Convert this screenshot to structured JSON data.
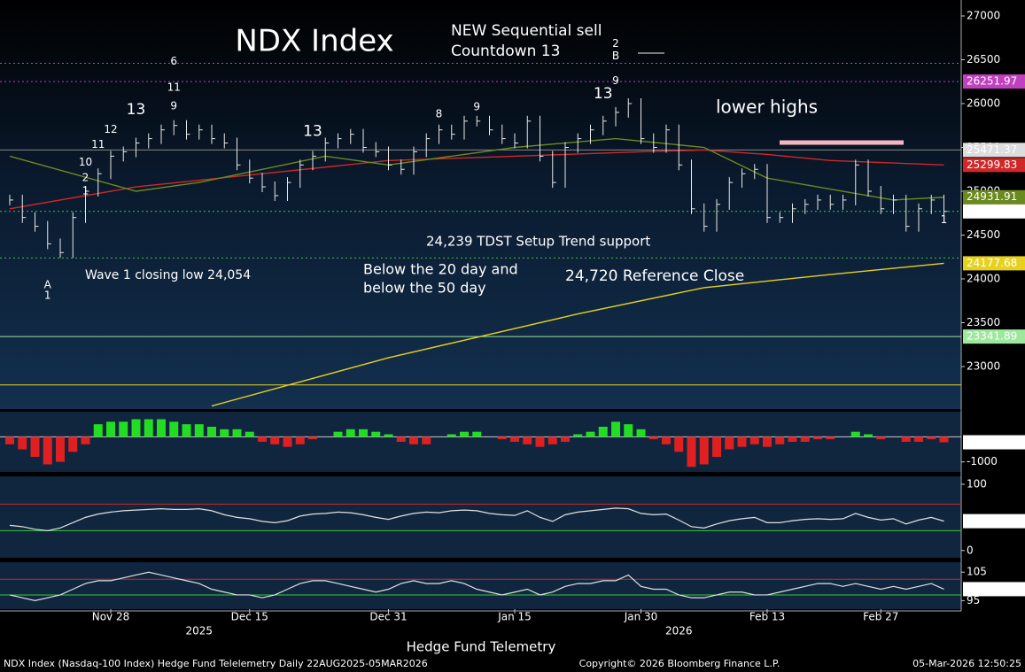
{
  "chart_data": [
    {
      "type": "price",
      "title": "NDX Index",
      "annotations": [
        "NEW Sequential sell",
        "Countdown 13",
        "lower highs",
        "24,239 TDST Setup Trend support",
        "Wave 1 closing low 24,054",
        "Below the 20 day and",
        "below the 50 day",
        "24,720 Reference Close"
      ],
      "categories": [
        null,
        null,
        null,
        null,
        null,
        null,
        null,
        null,
        "Nov 28",
        null,
        null,
        null,
        null,
        null,
        null,
        null,
        null,
        null,
        null,
        "Dec 15",
        null,
        null,
        null,
        null,
        null,
        null,
        null,
        null,
        null,
        null,
        "Dec 31",
        null,
        null,
        null,
        null,
        null,
        null,
        null,
        null,
        null,
        "Jan 15",
        null,
        null,
        null,
        null,
        null,
        null,
        null,
        null,
        null,
        "Jan 30",
        null,
        null,
        null,
        null,
        null,
        null,
        null,
        null,
        null,
        "Feb 13",
        null,
        null,
        null,
        null,
        null,
        null,
        null,
        null,
        "Feb 27",
        null,
        null,
        null,
        null,
        null
      ],
      "year_labels": [
        {
          "text": "2025",
          "at": 15
        },
        {
          "text": "2026",
          "at": 53
        }
      ],
      "x_label": "Hedge Fund Telemetry",
      "values": [
        24900,
        24700,
        24600,
        24400,
        24300,
        24700,
        25000,
        25200,
        25400,
        25450,
        25550,
        25600,
        25700,
        25750,
        25650,
        25700,
        25600,
        25550,
        25300,
        25150,
        25050,
        24950,
        25100,
        25300,
        25400,
        25550,
        25600,
        25650,
        25500,
        25450,
        25300,
        25250,
        25450,
        25600,
        25700,
        25650,
        25800,
        25800,
        25700,
        25600,
        25550,
        25800,
        25400,
        25100,
        25500,
        25600,
        25700,
        25800,
        25900,
        26000,
        25600,
        25500,
        25700,
        25300,
        24800,
        24600,
        24850,
        25100,
        25200,
        25250,
        24700,
        24700,
        24800,
        24850,
        24900,
        24850,
        24900,
        25300,
        25000,
        24800,
        24900,
        24600,
        24800,
        24900,
        24770.08
      ],
      "color": "#e8e8e8",
      "series": [
        {
          "color": "#e6d21e",
          "x": [
            16,
            30,
            45,
            55,
            65,
            74
          ],
          "values": [
            22550,
            23100,
            23600,
            23900,
            24050,
            24177.68
          ]
        },
        {
          "color": "#d02828",
          "x": [
            0,
            10,
            20,
            30,
            40,
            50,
            55,
            60,
            65,
            74
          ],
          "values": [
            24800,
            25050,
            25200,
            25350,
            25400,
            25450,
            25470,
            25420,
            25350,
            25299.83
          ]
        },
        {
          "color": "#6b8a1e",
          "x": [
            0,
            5,
            10,
            15,
            20,
            25,
            30,
            40,
            48,
            55,
            60,
            66,
            70,
            74
          ],
          "values": [
            25400,
            25200,
            25000,
            25100,
            25250,
            25400,
            25300,
            25500,
            25600,
            25500,
            25150,
            25000,
            24900,
            24931.91
          ]
        }
      ],
      "levels": [
        {
          "value": 26460,
          "color": "#c040c0",
          "dash": true,
          "label": false
        },
        {
          "value": 26251.97,
          "color": "#c040c0",
          "dash": true,
          "label": true
        },
        {
          "value": 25471.37,
          "color": "#888888",
          "dash": false,
          "label": true
        },
        {
          "value": 24770,
          "color": "#3cc83c",
          "dash": true,
          "label": false
        },
        {
          "value": 24239,
          "color": "#3cc83c",
          "dash": true,
          "label": false
        },
        {
          "value": 23341.89,
          "color": "#9de89d",
          "dash": false,
          "label": true
        },
        {
          "value": 22790,
          "color": "#e6d21e",
          "dash": false,
          "label": false
        }
      ],
      "sequential_labels": [
        {
          "text": "A",
          "at": 3,
          "level": 23930,
          "color": "#3dd"
        },
        {
          "text": "1",
          "at": 3,
          "level": 23810,
          "color": "#ff3"
        },
        {
          "text": "1",
          "at": 6,
          "level": 25000,
          "color": "#3f3"
        },
        {
          "text": "2",
          "at": 6,
          "level": 25150,
          "color": "#3f3"
        },
        {
          "text": "10",
          "at": 6,
          "level": 25330,
          "color": "#f33"
        },
        {
          "text": "11",
          "at": 7,
          "level": 25530,
          "color": "#f33"
        },
        {
          "text": "12",
          "at": 8,
          "level": 25700,
          "color": "#f33"
        },
        {
          "text": "13",
          "at": 10,
          "level": 25930,
          "color": "#f33"
        },
        {
          "text": "9",
          "at": 13,
          "level": 25970,
          "color": "#3f3"
        },
        {
          "text": "11",
          "at": 13,
          "level": 26180,
          "color": "#f33"
        },
        {
          "text": "6",
          "at": 13,
          "level": 26480,
          "color": "#d3d"
        },
        {
          "text": "13",
          "at": 24,
          "level": 25680,
          "color": "#f33"
        },
        {
          "text": "8",
          "at": 34,
          "level": 25880,
          "color": "#f33"
        },
        {
          "text": "9",
          "at": 37,
          "level": 25960,
          "color": "#f33"
        },
        {
          "text": "13",
          "at": 47,
          "level": 26110,
          "color": "#f33"
        },
        {
          "text": "9",
          "at": 48,
          "level": 26260,
          "color": "#d3d"
        },
        {
          "text": "B",
          "at": 48,
          "level": 26540,
          "color": "#3dd"
        },
        {
          "text": "2",
          "at": 48,
          "level": 26680,
          "color": "#ff3"
        },
        {
          "text": "1",
          "at": 74,
          "level": 24670,
          "color": "#3f3"
        }
      ],
      "ylim": [
        22515,
        27182
      ],
      "yticks": [
        23000,
        23500,
        24000,
        24500,
        25000,
        25500,
        26000,
        26500,
        27000
      ]
    },
    {
      "type": "histogram",
      "ylim": [
        -1400,
        1000
      ],
      "yticks": [
        -1000
      ],
      "up_color": "#22dd22",
      "down_color": "#e02020",
      "values": [
        -300,
        -500,
        -800,
        -1100,
        -1000,
        -600,
        -300,
        500,
        600,
        600,
        700,
        700,
        700,
        600,
        500,
        500,
        400,
        300,
        300,
        200,
        -200,
        -300,
        -400,
        -300,
        -100,
        0,
        200,
        300,
        300,
        200,
        100,
        -200,
        -300,
        -300,
        0,
        100,
        200,
        200,
        0,
        -100,
        -200,
        -300,
        -400,
        -300,
        -200,
        100,
        200,
        400,
        600,
        500,
        300,
        -100,
        -300,
        -600,
        -1200,
        -1100,
        -800,
        -500,
        -400,
        -300,
        -400,
        -300,
        -200,
        -200,
        -100,
        -100,
        0,
        200,
        100,
        -100,
        0,
        -200,
        -200,
        -100,
        -219.0547
      ]
    },
    {
      "type": "oscillator",
      "ylim": [
        -11,
        112
      ],
      "yticks": [
        0,
        100
      ],
      "color": "#e0e0e0",
      "levels": [
        {
          "value": 70,
          "color": "#d02828"
        },
        {
          "value": 30,
          "color": "#3cc83c"
        }
      ],
      "values": [
        38,
        36,
        32,
        30,
        34,
        42,
        50,
        55,
        58,
        60,
        61,
        62,
        63,
        62,
        62,
        63,
        60,
        54,
        50,
        48,
        44,
        42,
        45,
        52,
        55,
        56,
        58,
        57,
        54,
        50,
        47,
        52,
        56,
        58,
        57,
        60,
        61,
        60,
        56,
        54,
        53,
        60,
        50,
        44,
        54,
        58,
        60,
        62,
        64,
        63,
        56,
        54,
        55,
        46,
        36,
        34,
        40,
        45,
        48,
        50,
        42,
        42,
        45,
        47,
        48,
        47,
        48,
        56,
        50,
        46,
        48,
        40,
        46,
        50,
        44.321
      ]
    },
    {
      "type": "oscillator",
      "ylim": [
        92,
        108.5
      ],
      "yticks": [
        95,
        105
      ],
      "color": "#e0e0e0",
      "levels": [
        {
          "value": 102.5,
          "color": "#d02828"
        },
        {
          "value": 97,
          "color": "#3cc83c"
        }
      ],
      "values": [
        97,
        96,
        95,
        96,
        97,
        99,
        101,
        102,
        102,
        103,
        104,
        105,
        104,
        103,
        102,
        101,
        99,
        98,
        97,
        97,
        96,
        97,
        99,
        101,
        102,
        102,
        101,
        100,
        99,
        98,
        99,
        101,
        102,
        101,
        101,
        102,
        101,
        99,
        98,
        97,
        98,
        99,
        97,
        98,
        100,
        101,
        101,
        102,
        102,
        104,
        100,
        99,
        99,
        97,
        96,
        96,
        97,
        98,
        98,
        97,
        97,
        98,
        99,
        100,
        101,
        101,
        100,
        101,
        100,
        99,
        100,
        99,
        100,
        101,
        99.0312
      ]
    }
  ],
  "footer": {
    "left": "NDX Index (Nasdaq-100 Index) Hedge Fund Telelemetry Daily 22AUG2025-05MAR2026",
    "center": "Copyright© 2026 Bloomberg Finance L.P.",
    "right": "05-Mar-2026 12:50:25"
  }
}
